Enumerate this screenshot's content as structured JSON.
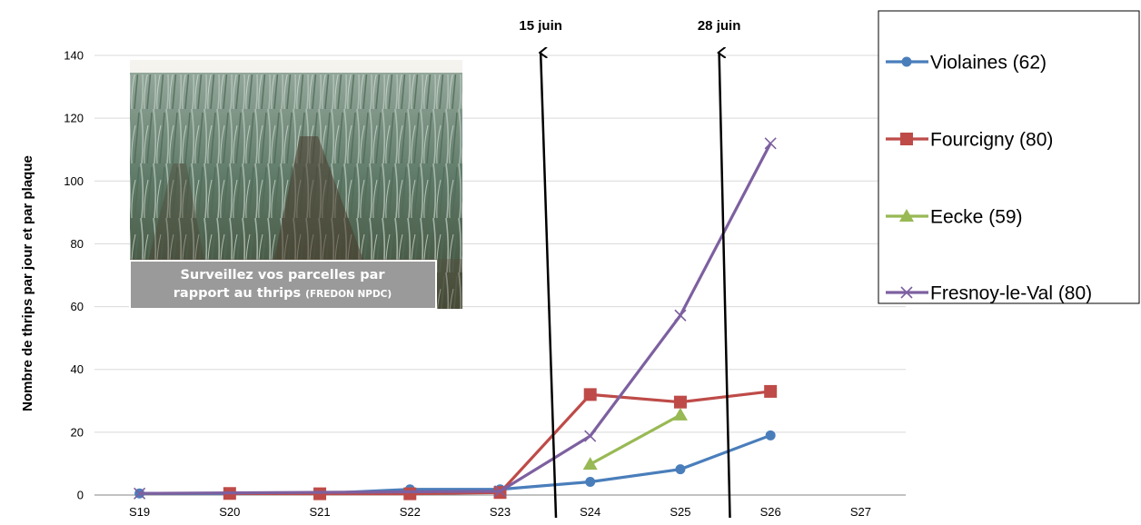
{
  "chart_data": {
    "type": "line",
    "title": "",
    "xlabel": "",
    "ylabel": "Nombre de thrips par jour et par plaque",
    "categories": [
      "S19",
      "S20",
      "S21",
      "S22",
      "S23",
      "S24",
      "S25",
      "S26",
      "S27"
    ],
    "yticks": [
      "0",
      "20",
      "40",
      "60",
      "80",
      "100",
      "120",
      "140"
    ],
    "ylim": [
      0,
      140
    ],
    "grid": "horizontal",
    "legend_position": "right",
    "series": [
      {
        "name": "Violaines (62)",
        "color": "#4a7ebb",
        "marker": "circle",
        "values": [
          0.5,
          0.5,
          0.5,
          1.8,
          1.8,
          4.2,
          8.2,
          19,
          null
        ]
      },
      {
        "name": "Fourcigny (80)",
        "color": "#be4b48",
        "marker": "square",
        "values": [
          null,
          0.5,
          0.4,
          0.4,
          0.8,
          32,
          29.6,
          33,
          null
        ]
      },
      {
        "name": "Eecke (59)",
        "color": "#98b954",
        "marker": "triangle",
        "values": [
          null,
          null,
          null,
          null,
          null,
          9.8,
          25.5,
          null,
          null
        ]
      },
      {
        "name": "Fresnoy-le-Val (80)",
        "color": "#7d60a0",
        "marker": "x",
        "values": [
          0.5,
          null,
          null,
          null,
          1.2,
          18.8,
          57.2,
          112,
          null
        ]
      }
    ],
    "annotations": [
      {
        "text": "15 juin",
        "x_from": 5.12,
        "x_to": 4.95,
        "y_top": 140
      },
      {
        "text": "28 juin",
        "x_from": 7.05,
        "x_to": 6.93,
        "y_top": 140
      }
    ]
  },
  "photo": {
    "caption_line1": "Surveillez vos parcelles par",
    "caption_line2": "rapport au thrips",
    "caption_source": "(FREDON NPDC)"
  }
}
